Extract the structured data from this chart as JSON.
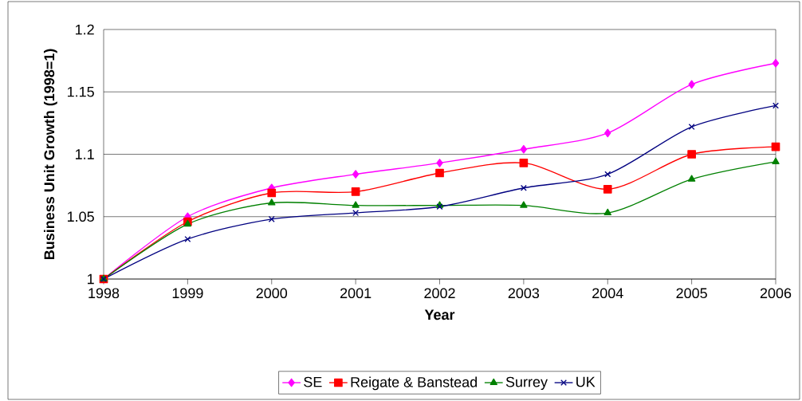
{
  "chart_data": {
    "type": "line",
    "xlabel": "Year",
    "ylabel": "Business Unit Growth (1998=1)",
    "x": [
      1998,
      1999,
      2000,
      2001,
      2002,
      2003,
      2004,
      2005,
      2006
    ],
    "xlim": [
      1998,
      2006
    ],
    "xticks": [
      1998,
      1999,
      2000,
      2001,
      2002,
      2003,
      2004,
      2005,
      2006
    ],
    "ylim": [
      1,
      1.2
    ],
    "yticks": [
      1,
      1.05,
      1.1,
      1.15,
      1.2
    ],
    "grid": "y",
    "legend": "bottom",
    "line_style": "solid",
    "series": [
      {
        "name": "SE",
        "color": "#ff00ff",
        "marker": "diamond",
        "values": [
          1.0,
          1.05,
          1.073,
          1.084,
          1.093,
          1.104,
          1.117,
          1.156,
          1.173
        ]
      },
      {
        "name": "Reigate & Banstead",
        "color": "#ff0000",
        "marker": "square",
        "values": [
          1.0,
          1.046,
          1.069,
          1.07,
          1.085,
          1.093,
          1.072,
          1.1,
          1.106
        ]
      },
      {
        "name": "Surrey",
        "color": "#008000",
        "marker": "triangle",
        "values": [
          1.0,
          1.044,
          1.061,
          1.059,
          1.059,
          1.059,
          1.053,
          1.08,
          1.094
        ]
      },
      {
        "name": "UK",
        "color": "#000080",
        "marker": "cross",
        "values": [
          1.0,
          1.032,
          1.048,
          1.053,
          1.058,
          1.073,
          1.084,
          1.122,
          1.139
        ]
      }
    ]
  }
}
